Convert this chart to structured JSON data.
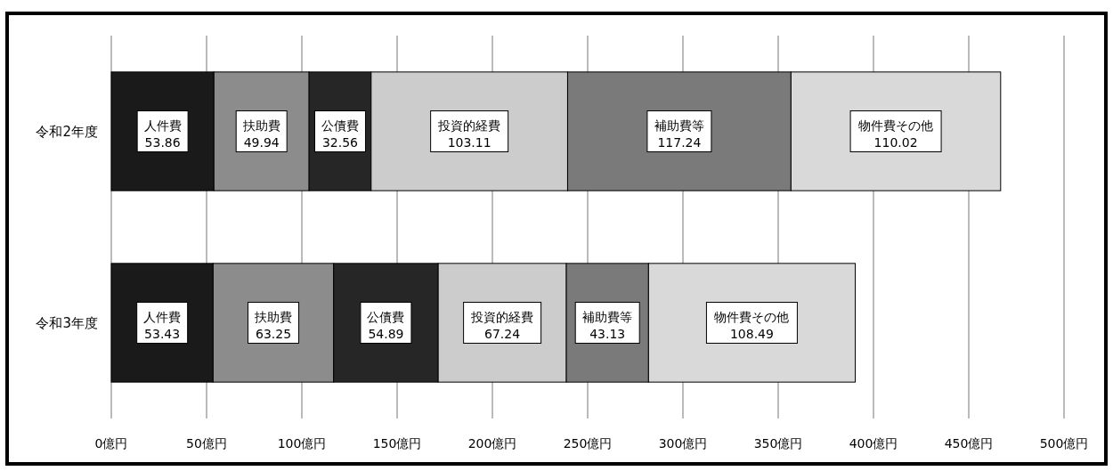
{
  "chart_data": {
    "type": "bar",
    "orientation": "horizontal",
    "stacked": true,
    "data_labels": true,
    "grid": "x",
    "categories": [
      "令和2年度",
      "令和3年度"
    ],
    "series": [
      {
        "name": "人件費",
        "color": "#1a1a1a",
        "values": [
          53.86,
          53.43
        ]
      },
      {
        "name": "扶助費",
        "color": "#8c8c8c",
        "values": [
          49.94,
          63.25
        ]
      },
      {
        "name": "公債費",
        "color": "#262626",
        "values": [
          32.56,
          54.89
        ]
      },
      {
        "name": "投資的経費",
        "color": "#cccccc",
        "values": [
          103.11,
          67.24
        ]
      },
      {
        "name": "補助費等",
        "color": "#7a7a7a",
        "values": [
          117.24,
          43.13
        ]
      },
      {
        "name": "物件費その他",
        "color": "#d9d9d9",
        "values": [
          110.02,
          108.49
        ]
      }
    ],
    "xlim": [
      0,
      500
    ],
    "xticks": [
      {
        "value": 0,
        "label": "0億円"
      },
      {
        "value": 50,
        "label": "50億円"
      },
      {
        "value": 100,
        "label": "100億円"
      },
      {
        "value": 150,
        "label": "150億円"
      },
      {
        "value": 200,
        "label": "200億円"
      },
      {
        "value": 250,
        "label": "250億円"
      },
      {
        "value": 300,
        "label": "300億円"
      },
      {
        "value": 350,
        "label": "350億円"
      },
      {
        "value": 400,
        "label": "400億円"
      },
      {
        "value": 450,
        "label": "450億円"
      },
      {
        "value": 500,
        "label": "500億円"
      }
    ]
  }
}
